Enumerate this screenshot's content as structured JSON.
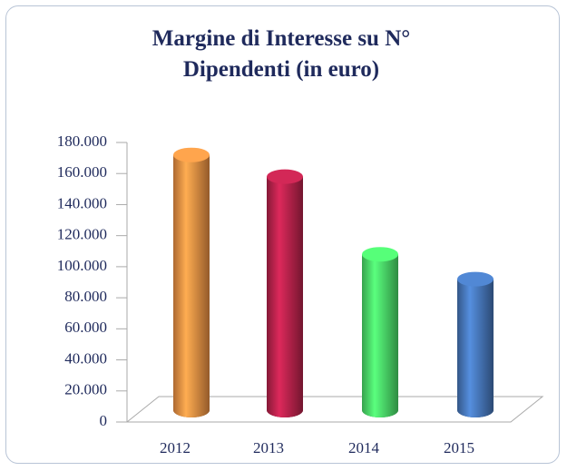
{
  "chart_data": {
    "type": "bar",
    "title": "Margine di Interesse su N° Dipendenti (in euro)",
    "categories": [
      "2012",
      "2013",
      "2014",
      "2015"
    ],
    "values": [
      172000,
      158000,
      108000,
      92000
    ],
    "colors": [
      "#f79646",
      "#c0244f",
      "#4ee86e",
      "#4a7cc2"
    ],
    "ylim": [
      0,
      180000
    ],
    "yticks": [
      0,
      {
        "value": 20000,
        "label": "20.000"
      },
      {
        "value": 40000,
        "label": "40.000"
      },
      {
        "value": 60000,
        "label": "60.000"
      },
      {
        "value": 80000,
        "label": "80.000"
      },
      {
        "value": 100000,
        "label": "100.000"
      },
      {
        "value": 120000,
        "label": "120.000"
      },
      {
        "value": 140000,
        "label": "140.000"
      },
      {
        "value": 160000,
        "label": "160.000"
      },
      {
        "value": 180000,
        "label": "180.000"
      }
    ]
  }
}
